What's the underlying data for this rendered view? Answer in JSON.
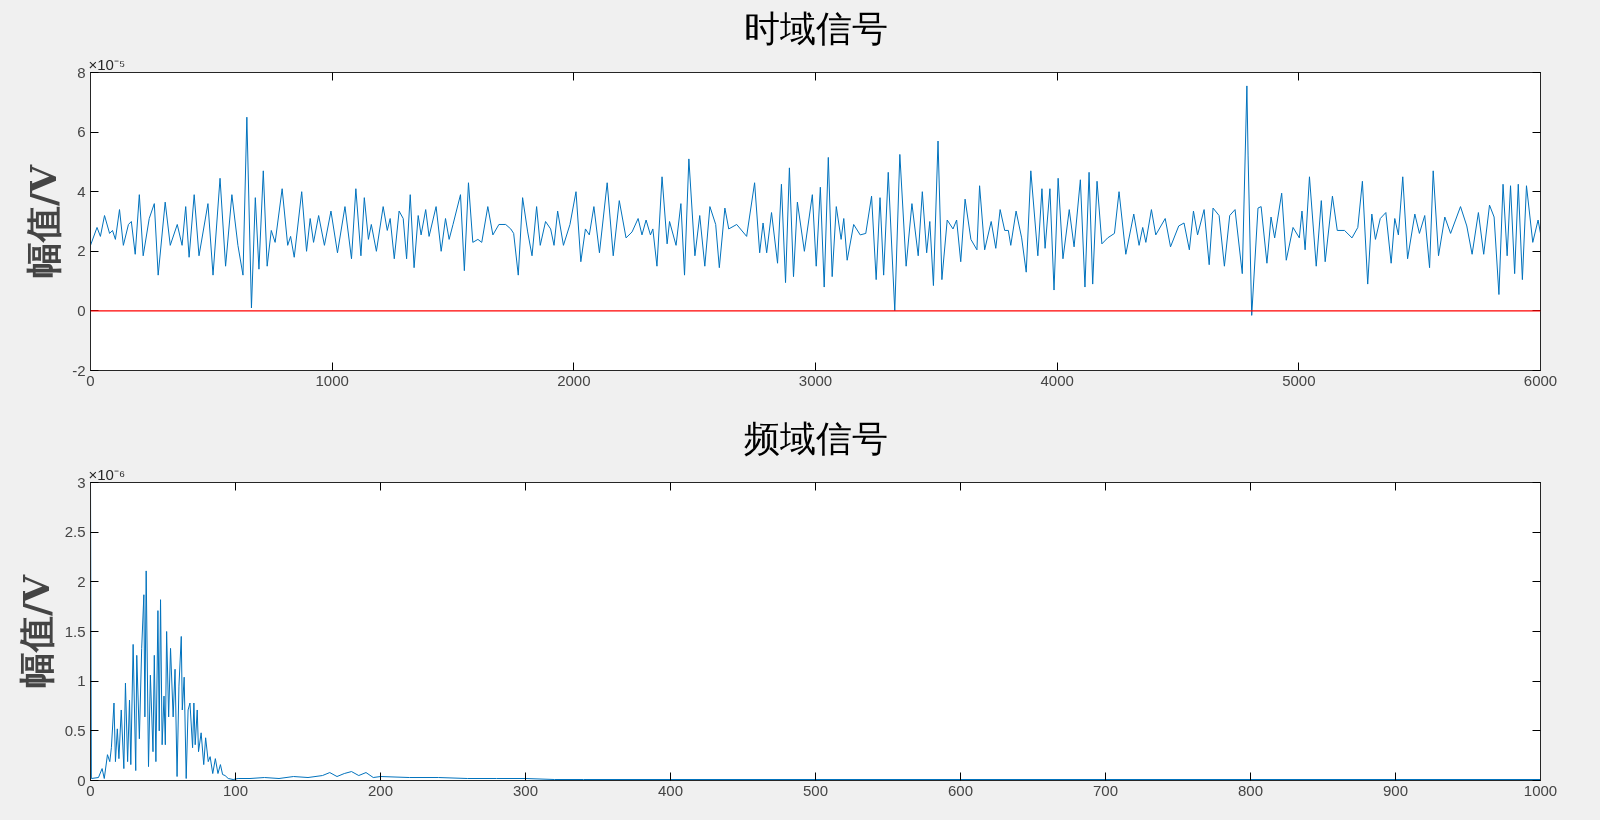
{
  "chart_data": [
    {
      "type": "line",
      "title": "时域信号",
      "ylabel": "幅值/V",
      "annotations": [
        "×10⁻⁵"
      ],
      "xlim": [
        0,
        6000
      ],
      "ylim": [
        -2,
        8
      ],
      "xticks": [
        0,
        1000,
        2000,
        3000,
        4000,
        5000,
        6000
      ],
      "yticks": [
        -2,
        0,
        2,
        4,
        6,
        8
      ],
      "grid": false,
      "marker": "none",
      "line_style": "solid",
      "ref_lines": [
        {
          "axis": "y",
          "value": 0,
          "label": null,
          "color": "#ff0000",
          "line_style": "solid"
        }
      ],
      "series": [
        {
          "color": "#0072bd",
          "x": [
            0,
            27,
            41,
            58,
            79,
            91,
            103,
            120,
            136,
            157,
            169,
            185,
            202,
            218,
            243,
            264,
            280,
            309,
            330,
            359,
            379,
            394,
            408,
            429,
            449,
            486,
            507,
            536,
            559,
            585,
            610,
            631,
            647,
            666,
            682,
            697,
            715,
            731,
            748,
            764,
            793,
            816,
            828,
            843,
            874,
            894,
            909,
            923,
            944,
            968,
            995,
            1022,
            1053,
            1080,
            1098,
            1119,
            1133,
            1150,
            1162,
            1183,
            1211,
            1228,
            1240,
            1257,
            1277,
            1294,
            1308,
            1323,
            1339,
            1356,
            1368,
            1387,
            1401,
            1430,
            1451,
            1469,
            1484,
            1500,
            1531,
            1547,
            1564,
            1582,
            1603,
            1619,
            1644,
            1665,
            1690,
            1718,
            1739,
            1751,
            1770,
            1788,
            1809,
            1827,
            1846,
            1861,
            1883,
            1904,
            1918,
            1933,
            1957,
            1984,
            2009,
            2029,
            2048,
            2064,
            2083,
            2106,
            2138,
            2163,
            2188,
            2216,
            2241,
            2266,
            2282,
            2299,
            2317,
            2327,
            2344,
            2365,
            2386,
            2396,
            2423,
            2443,
            2458,
            2476,
            2501,
            2521,
            2542,
            2563,
            2587,
            2602,
            2625,
            2641,
            2674,
            2715,
            2748,
            2769,
            2783,
            2798,
            2818,
            2843,
            2859,
            2876,
            2892,
            2909,
            2925,
            2954,
            2987,
            3003,
            3020,
            3036,
            3053,
            3069,
            3086,
            3106,
            3117,
            3131,
            3158,
            3185,
            3208,
            3232,
            3251,
            3267,
            3282,
            3301,
            3328,
            3349,
            3375,
            3399,
            3425,
            3442,
            3460,
            3473,
            3488,
            3507,
            3523,
            3545,
            3569,
            3584,
            3601,
            3619,
            3643,
            3668,
            3679,
            3700,
            3727,
            3746,
            3764,
            3783,
            3798,
            3808,
            3830,
            3853,
            3872,
            3891,
            3920,
            3937,
            3950,
            3970,
            3987,
            4004,
            4024,
            4050,
            4070,
            4096,
            4115,
            4132,
            4147,
            4165,
            4185,
            4209,
            4237,
            4256,
            4284,
            4317,
            4339,
            4354,
            4367,
            4390,
            4408,
            4447,
            4469,
            4503,
            4525,
            4547,
            4564,
            4581,
            4608,
            4629,
            4645,
            4670,
            4692,
            4714,
            4736,
            4766,
            4785,
            4790,
            4805,
            4831,
            4844,
            4868,
            4885,
            4900,
            4929,
            4948,
            4976,
            5002,
            5013,
            5026,
            5044,
            5072,
            5093,
            5109,
            5139,
            5159,
            5189,
            5220,
            5244,
            5263,
            5285,
            5302,
            5317,
            5337,
            5360,
            5382,
            5397,
            5412,
            5430,
            5450,
            5480,
            5499,
            5521,
            5541,
            5556,
            5578,
            5604,
            5628,
            5669,
            5695,
            5717,
            5743,
            5765,
            5789,
            5808,
            5828,
            5845,
            5862,
            5876,
            5893,
            5908,
            5925,
            5942,
            5968,
            5990,
            6000
          ],
          "values": [
            2.2,
            2.8,
            2.5,
            3.2,
            2.6,
            2.7,
            2.4,
            3.4,
            2.2,
            2.9,
            3.0,
            1.9,
            3.9,
            1.85,
            3.1,
            3.6,
            1.2,
            3.65,
            2.2,
            2.9,
            2.2,
            3.5,
            1.8,
            3.9,
            1.85,
            3.6,
            1.2,
            4.45,
            1.5,
            3.9,
            2.2,
            1.2,
            6.5,
            0.1,
            3.8,
            1.4,
            4.7,
            1.5,
            2.7,
            2.3,
            4.1,
            2.2,
            2.5,
            1.8,
            4.0,
            2.0,
            3.1,
            2.3,
            3.2,
            2.2,
            3.35,
            1.95,
            3.5,
            1.75,
            4.1,
            1.85,
            3.8,
            2.4,
            2.9,
            2.0,
            3.5,
            2.7,
            3.1,
            1.75,
            3.35,
            3.1,
            1.75,
            3.9,
            1.45,
            3.2,
            2.55,
            3.4,
            2.5,
            3.5,
            2.0,
            3.1,
            2.4,
            2.9,
            3.9,
            1.35,
            4.3,
            2.3,
            2.4,
            2.3,
            3.5,
            2.55,
            2.9,
            2.9,
            2.75,
            2.6,
            1.2,
            3.8,
            2.65,
            1.85,
            3.5,
            2.2,
            3.0,
            2.75,
            2.2,
            3.35,
            2.2,
            2.9,
            4.0,
            1.65,
            2.75,
            2.55,
            3.5,
            1.95,
            4.3,
            1.85,
            3.7,
            2.45,
            2.65,
            3.1,
            2.55,
            3.05,
            2.55,
            2.75,
            1.5,
            4.5,
            2.25,
            3.0,
            2.2,
            3.6,
            1.2,
            5.1,
            1.85,
            3.2,
            1.5,
            3.5,
            2.9,
            1.45,
            3.45,
            2.75,
            2.9,
            2.5,
            4.3,
            1.95,
            2.95,
            1.95,
            3.3,
            1.6,
            4.25,
            0.95,
            4.8,
            1.15,
            3.65,
            2.0,
            3.9,
            1.5,
            4.15,
            0.8,
            5.15,
            1.15,
            3.5,
            2.4,
            3.1,
            1.7,
            2.9,
            2.55,
            2.6,
            3.85,
            1.05,
            3.8,
            1.2,
            4.65,
            0.0,
            5.25,
            1.5,
            3.6,
            1.85,
            4.0,
            1.95,
            3.0,
            0.85,
            5.7,
            1.05,
            3.05,
            2.75,
            3.05,
            1.65,
            3.75,
            2.4,
            2.05,
            4.2,
            2.05,
            3.0,
            2.1,
            3.4,
            2.7,
            2.7,
            2.2,
            3.35,
            2.45,
            1.3,
            4.7,
            1.85,
            4.1,
            2.1,
            4.1,
            0.7,
            4.45,
            1.75,
            3.4,
            2.15,
            4.4,
            0.8,
            4.65,
            0.9,
            4.35,
            2.25,
            2.45,
            2.6,
            4.0,
            1.9,
            3.25,
            2.2,
            2.8,
            2.3,
            3.4,
            2.55,
            3.1,
            2.15,
            2.85,
            2.95,
            2.05,
            3.35,
            2.55,
            3.4,
            1.55,
            3.45,
            3.2,
            1.5,
            3.2,
            3.4,
            1.25,
            7.55,
            5.2,
            -0.15,
            3.45,
            3.5,
            1.6,
            3.15,
            2.45,
            3.95,
            1.7,
            2.8,
            2.45,
            3.35,
            2.05,
            4.5,
            1.5,
            3.7,
            1.65,
            3.85,
            2.7,
            2.7,
            2.45,
            2.8,
            4.35,
            0.9,
            3.25,
            2.4,
            3.1,
            3.3,
            1.6,
            3.1,
            2.55,
            4.5,
            1.75,
            3.25,
            2.6,
            3.2,
            1.45,
            4.7,
            1.85,
            3.15,
            2.6,
            3.5,
            2.85,
            1.9,
            3.3,
            1.9,
            3.55,
            3.15,
            0.55,
            4.25,
            1.85,
            4.2,
            1.25,
            4.25,
            1.05,
            4.2,
            2.3,
            3.05,
            2.6
          ]
        }
      ]
    },
    {
      "type": "line",
      "title": "频域信号",
      "ylabel": "幅值/V",
      "annotations": [
        "×10⁻⁶"
      ],
      "xlim": [
        0,
        1000
      ],
      "ylim": [
        0,
        3
      ],
      "xticks": [
        0,
        100,
        200,
        300,
        400,
        500,
        600,
        700,
        800,
        900,
        1000
      ],
      "yticks": [
        0,
        0.5,
        1,
        1.5,
        2,
        2.5,
        3
      ],
      "grid": false,
      "marker": "none",
      "line_style": "solid",
      "series": [
        {
          "color": "#0072bd",
          "x": [
            0,
            0.6,
            5.5,
            8,
            9.5,
            11.7,
            13.3,
            14.4,
            16.2,
            17.2,
            18.5,
            19.6,
            21.2,
            23,
            24.1,
            25.6,
            26.9,
            27.8,
            29.4,
            31.2,
            31.9,
            33.7,
            35.3,
            36.8,
            37.5,
            38.4,
            40,
            41.3,
            43.1,
            44,
            45.1,
            46.5,
            47.4,
            48.3,
            49.4,
            50.7,
            51.6,
            52.5,
            53.9,
            55.2,
            57,
            58.3,
            59.7,
            61,
            62.6,
            63.3,
            64.6,
            66,
            67.3,
            68.6,
            70.4,
            71.3,
            72.2,
            73.6,
            74.5,
            76.3,
            78.1,
            79.4,
            81.2,
            82.5,
            84.3,
            86.1,
            87.9,
            89.6,
            91.1,
            92.8,
            95,
            98.4,
            101.8,
            110,
            120,
            130,
            140,
            150,
            160,
            165,
            170,
            175,
            180,
            185,
            190,
            195,
            200,
            220,
            240,
            260,
            280,
            300,
            320,
            340,
            400,
            500,
            600,
            700,
            800,
            900,
            1000
          ],
          "values": [
            3.0,
            0.02,
            0.03,
            0.12,
            0.02,
            0.26,
            0.19,
            0.33,
            0.78,
            0.19,
            0.52,
            0.22,
            0.71,
            0.12,
            0.98,
            0.19,
            0.81,
            0.16,
            1.37,
            0.1,
            1.26,
            0.42,
            1.33,
            1.87,
            0.64,
            2.11,
            0.14,
            1.06,
            0.29,
            1.26,
            0.19,
            1.71,
            0.5,
            1.82,
            0.36,
            0.85,
            0.36,
            1.5,
            0.64,
            1.33,
            0.64,
            1.12,
            0.04,
            0.95,
            1.45,
            0.71,
            1.04,
            0.02,
            0.71,
            0.78,
            0.33,
            0.78,
            0.36,
            0.71,
            0.29,
            0.48,
            0.16,
            0.43,
            0.19,
            0.24,
            0.07,
            0.22,
            0.07,
            0.16,
            0.06,
            0.05,
            0.02,
            0.01,
            0.02,
            0.02,
            0.03,
            0.02,
            0.04,
            0.03,
            0.05,
            0.08,
            0.04,
            0.07,
            0.09,
            0.05,
            0.08,
            0.03,
            0.04,
            0.03,
            0.03,
            0.02,
            0.02,
            0.02,
            0.01,
            0.01,
            0.01,
            0.01,
            0.01,
            0.01,
            0.01,
            0.01,
            0.01
          ]
        }
      ]
    }
  ]
}
